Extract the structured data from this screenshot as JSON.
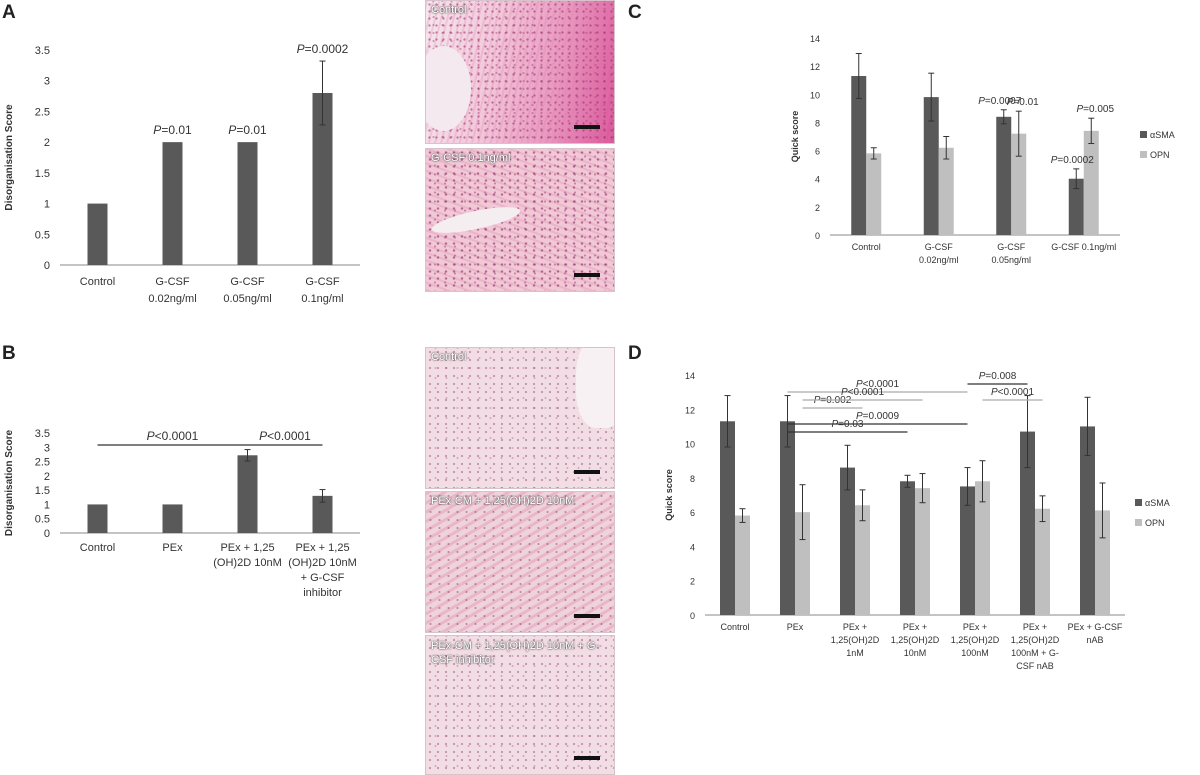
{
  "panels": {
    "A": "A",
    "B": "B",
    "C": "C",
    "D": "D"
  },
  "micrographs": {
    "a1": "Control",
    "a2": "G-CSF 0.1ng/ml",
    "b1": "Control",
    "b2": "PEx-CM + 1,25(OH)2D 10nM",
    "b3": "PEx-CM + 1,25(OH)2D 10nM + G-CSF inhibitor"
  },
  "colors": {
    "dark": "#595959",
    "light": "#bfbfbf",
    "sig_line": "#999999",
    "err": "#333333"
  },
  "chart_data": [
    {
      "id": "A",
      "type": "bar",
      "ylabel": "Disorganisation Score",
      "ylim": [
        0,
        3.5
      ],
      "yticks": [
        0,
        0.5,
        1,
        1.5,
        2,
        2.5,
        3,
        3.5
      ],
      "categories": [
        [
          "Control"
        ],
        [
          "G-CSF",
          "0.02ng/ml"
        ],
        [
          "G-CSF",
          "0.05ng/ml"
        ],
        [
          "G-CSF",
          "0.1ng/ml"
        ]
      ],
      "values": [
        1,
        2,
        2,
        2.8
      ],
      "errors": [
        0,
        0.02,
        0.02,
        0.52
      ],
      "annotations": [
        null,
        "=0.01",
        "=0.01",
        "=0.0002"
      ]
    },
    {
      "id": "B",
      "type": "bar",
      "ylabel": "Disorganisation Score",
      "ylim": [
        0,
        3.5
      ],
      "yticks": [
        0,
        0.5,
        1,
        1.5,
        2,
        2.5,
        3,
        3.5
      ],
      "categories": [
        [
          "Control"
        ],
        [
          "PEx"
        ],
        [
          "PEx + 1,25",
          "(OH)2D 10nM"
        ],
        [
          "PEx + 1,25",
          "(OH)2D 10nM",
          "+ G-CSF",
          "inhibitor"
        ]
      ],
      "values": [
        1,
        1,
        2.72,
        1.3
      ],
      "errors": [
        0,
        0.01,
        0.2,
        0.22
      ],
      "brackets": [
        {
          "from": 0,
          "to": 2,
          "label": "<0.0001",
          "level": 0
        },
        {
          "from": 2,
          "to": 3,
          "label": "<0.0001",
          "level": 0
        }
      ]
    },
    {
      "id": "C",
      "type": "bar",
      "ylabel": "Quick score",
      "ylim": [
        0,
        14
      ],
      "yticks": [
        0,
        2,
        4,
        6,
        8,
        10,
        12,
        14
      ],
      "categories": [
        [
          "Control"
        ],
        [
          "G-CSF",
          "0.02ng/ml"
        ],
        [
          "G-CSF",
          "0.05ng/ml"
        ],
        [
          "G-CSF 0.1ng/ml"
        ]
      ],
      "series": [
        {
          "name": "αSMA",
          "values": [
            11.3,
            9.8,
            8.4,
            4.0
          ],
          "errors": [
            1.6,
            1.7,
            0.5,
            0.7
          ]
        },
        {
          "name": "OPN",
          "values": [
            5.8,
            6.2,
            7.2,
            7.4
          ],
          "errors": [
            0.4,
            0.8,
            1.6,
            0.9
          ]
        }
      ],
      "annotations": [
        {
          "cat": 2,
          "series": 0,
          "text": "=0.0007"
        },
        {
          "cat": 2,
          "series": 1,
          "text": "=0.01"
        },
        {
          "cat": 3,
          "series": 0,
          "text": "=0.0002"
        },
        {
          "cat": 3,
          "series": 1,
          "text": "=0.005"
        }
      ],
      "legend_position": "right"
    },
    {
      "id": "D",
      "type": "bar",
      "ylabel": "Quick score",
      "ylim": [
        0,
        14
      ],
      "yticks": [
        0,
        2,
        4,
        6,
        8,
        10,
        12,
        14
      ],
      "categories": [
        [
          "Control"
        ],
        [
          "PEx"
        ],
        [
          "PEx +",
          "1,25(OH)2D",
          "1nM"
        ],
        [
          "PEx +",
          "1,25(OH)2D",
          "10nM"
        ],
        [
          "PEx +",
          "1,25(OH)2D",
          "100nM"
        ],
        [
          "PEx +",
          "1,25(OH)2D",
          "100nM + G-",
          "CSF nAB"
        ],
        [
          "PEx + G-CSF",
          "nAB"
        ]
      ],
      "series": [
        {
          "name": "αSMA",
          "values": [
            11.3,
            11.3,
            8.6,
            7.8,
            7.5,
            10.7,
            11.0
          ],
          "errors": [
            1.5,
            1.5,
            1.3,
            0.35,
            1.1,
            2.1,
            1.7
          ]
        },
        {
          "name": "OPN",
          "values": [
            5.8,
            6.0,
            6.4,
            7.4,
            7.8,
            6.2,
            6.1
          ],
          "errors": [
            0.4,
            1.6,
            0.9,
            0.85,
            1.2,
            0.75,
            1.6
          ]
        }
      ],
      "brackets": [
        {
          "from": 1,
          "to": 4,
          "label": "<0.0001",
          "s1": 0,
          "s2": 0,
          "level": 6,
          "gray": true
        },
        {
          "from": 4,
          "to": 5,
          "label": "=0.008",
          "s1": 0,
          "s2": 0,
          "level": 7,
          "gray": false
        },
        {
          "from": 1,
          "to": 2,
          "label": "=0.002",
          "s1": 1,
          "s2": 1,
          "level": 4,
          "gray": true
        },
        {
          "from": 1,
          "to": 3,
          "label": "<0.0001",
          "s1": 1,
          "s2": 1,
          "level": 5,
          "gray": true
        },
        {
          "from": 4,
          "to": 5,
          "label": "<0.0001",
          "s1": 1,
          "s2": 1,
          "level": 5,
          "gray": true
        },
        {
          "from": 1,
          "to": 4,
          "label": "=0.0009",
          "s1": 0,
          "s2": 0,
          "level": 2,
          "gray": false
        },
        {
          "from": 1,
          "to": 3,
          "label": "=0.03",
          "s1": 0,
          "s2": 0,
          "level": 1,
          "gray": false
        }
      ],
      "legend_position": "right"
    }
  ]
}
